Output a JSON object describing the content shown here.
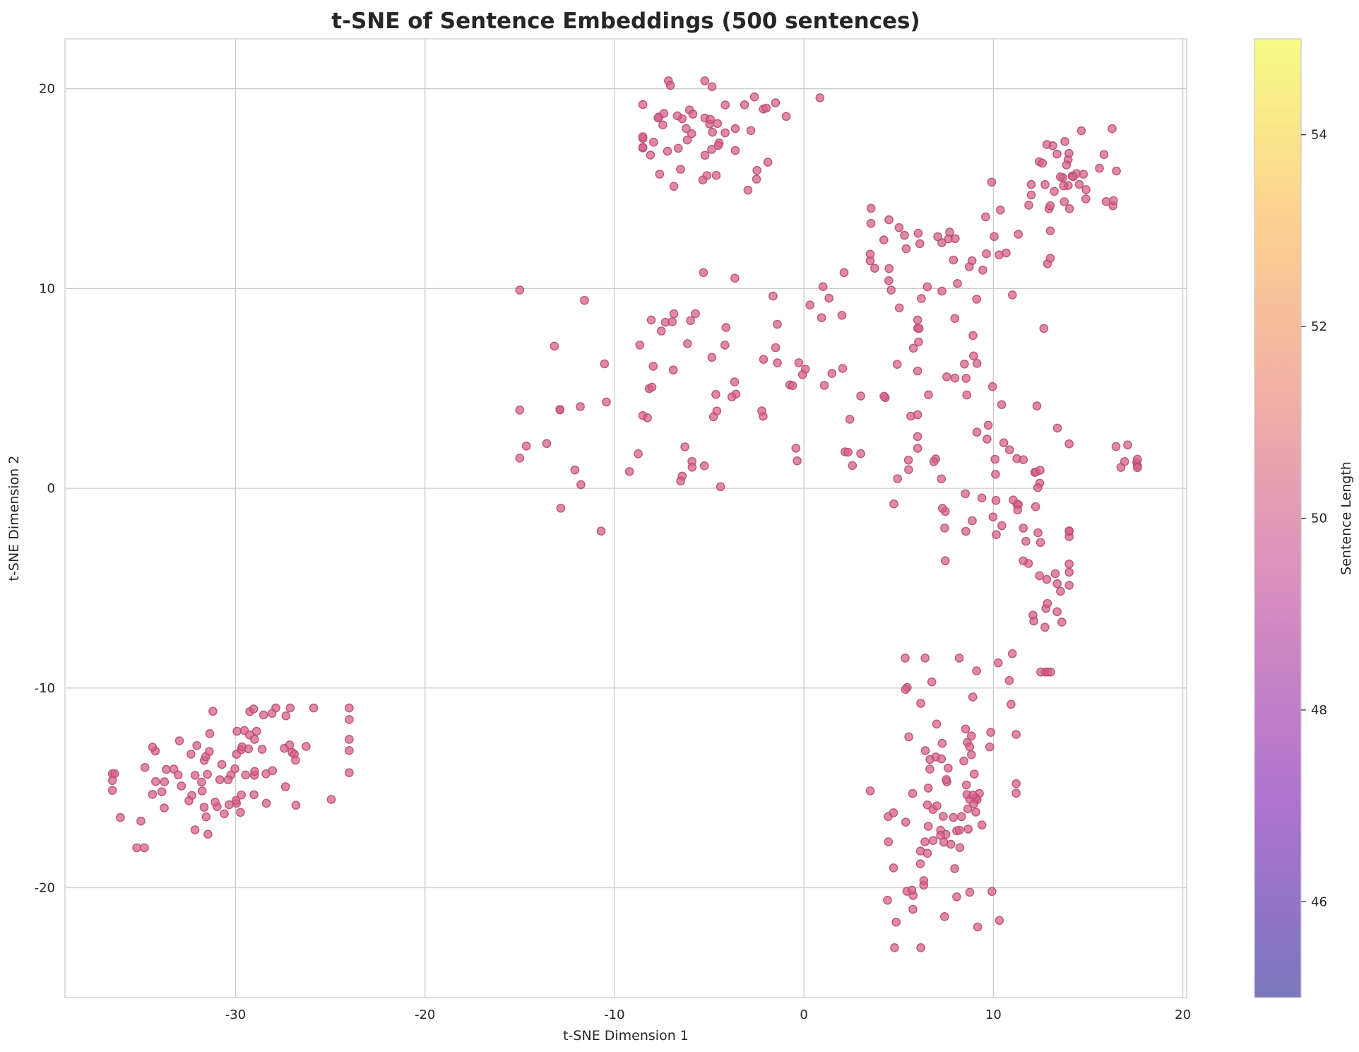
{
  "chart_data": {
    "type": "scatter",
    "title": "t-SNE of Sentence Embeddings (500 sentences)",
    "xlabel": "t-SNE Dimension 1",
    "ylabel": "t-SNE Dimension 2",
    "xlim": [
      -39,
      20.2
    ],
    "ylim": [
      -25.5,
      22.5
    ],
    "x_ticks": [
      -30,
      -20,
      -10,
      0,
      10,
      20
    ],
    "y_ticks": [
      -20,
      -10,
      0,
      10,
      20
    ],
    "x_tick_labels": [
      "-30",
      "-20",
      "-10",
      "0",
      "10",
      "20"
    ],
    "y_tick_labels": [
      "-20",
      "-10",
      "0",
      "10",
      "20"
    ],
    "grid": true,
    "point_color": "#d6608a",
    "point_edge_color": "#b84a72",
    "point_alpha": 0.75,
    "colorbar": {
      "label": "Sentence Length",
      "range": [
        45,
        55
      ],
      "ticks": [
        46,
        48,
        50,
        52,
        54
      ],
      "tick_labels": [
        "46",
        "48",
        "50",
        "52",
        "54"
      ],
      "colormap": [
        "#0d0887",
        "#6a00a8",
        "#b12a90",
        "#e16462",
        "#fca636",
        "#f0f921"
      ],
      "alpha": 0.55
    },
    "clusters": [
      {
        "name": "bottom-left",
        "cx": -30.5,
        "cy": -14.3,
        "sx": 3.4,
        "sy": 1.6,
        "tilt": 0.38,
        "n": 90,
        "xmin": -36.5,
        "xmax": -24,
        "ymin": -18,
        "ymax": -11
      },
      {
        "name": "top-middle",
        "cx": -5.0,
        "cy": 17.8,
        "sx": 2.2,
        "sy": 1.5,
        "tilt": 0,
        "n": 55,
        "xmin": -8.5,
        "xmax": 1,
        "ymin": 13.5,
        "ymax": 20.4
      },
      {
        "name": "top-right",
        "cx": 14.3,
        "cy": 15.8,
        "sx": 1.4,
        "sy": 1.2,
        "tilt": 0,
        "n": 35,
        "xmin": 12,
        "xmax": 16.5,
        "ymin": 14,
        "ymax": 18
      },
      {
        "name": "upper-right-sparse",
        "cx": 7.8,
        "cy": 12.0,
        "sx": 3.0,
        "sy": 1.8,
        "tilt": 0,
        "n": 45,
        "xmin": 3.5,
        "xmax": 13,
        "ymin": 8.5,
        "ymax": 15.5
      },
      {
        "name": "center",
        "cx": -4.5,
        "cy": 5.0,
        "sx": 6.0,
        "sy": 3.0,
        "tilt": 0,
        "n": 90,
        "xmin": -15,
        "xmax": 6,
        "ymin": -3.5,
        "ymax": 10.8
      },
      {
        "name": "middle-right",
        "cx": 9.5,
        "cy": 1.5,
        "sx": 2.8,
        "sy": 3.5,
        "tilt": 0,
        "n": 60,
        "xmin": 3,
        "xmax": 14,
        "ymin": -6,
        "ymax": 8
      },
      {
        "name": "right-edge",
        "cx": 17.0,
        "cy": 1.5,
        "sx": 0.5,
        "sy": 0.4,
        "tilt": 0,
        "n": 8,
        "xmin": 16.2,
        "xmax": 17.6,
        "ymin": 1.0,
        "ymax": 2.2
      },
      {
        "name": "lower-right",
        "cx": 12.8,
        "cy": -5.0,
        "sx": 1.1,
        "sy": 2.5,
        "tilt": 0,
        "n": 25,
        "xmin": 11,
        "xmax": 14,
        "ymin": -9.2,
        "ymax": -0.5
      },
      {
        "name": "bottom-right",
        "cx": 7.2,
        "cy": -16.0,
        "sx": 2.0,
        "sy": 3.8,
        "tilt": 0,
        "n": 92,
        "xmin": 3.5,
        "xmax": 11.2,
        "ymin": -23,
        "ymax": -8.5
      }
    ]
  }
}
